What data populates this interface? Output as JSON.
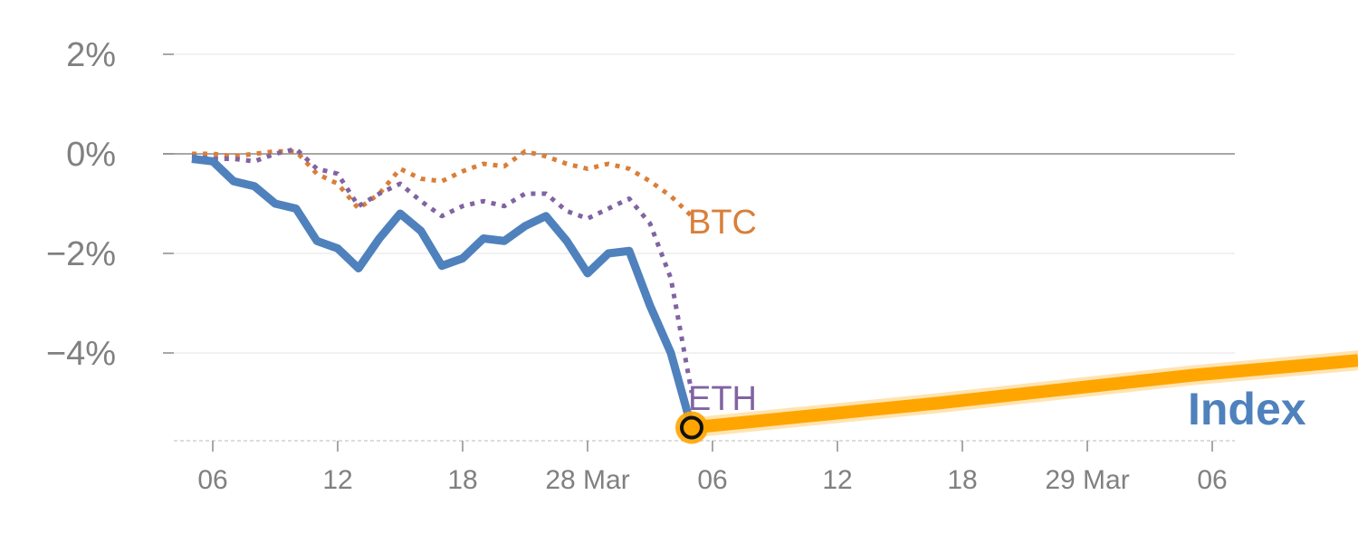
{
  "chart_data": {
    "type": "line",
    "title": "",
    "xlabel": "",
    "ylabel": "",
    "ylim": [
      -5.8,
      2.4
    ],
    "grid": true,
    "y_ticks": [
      {
        "value": 2,
        "label": "2%"
      },
      {
        "value": 0,
        "label": "0%"
      },
      {
        "value": -2,
        "label": "−2%"
      },
      {
        "value": -4,
        "label": "−4%"
      }
    ],
    "x_ticks": [
      "06",
      "12",
      "18",
      "28 Mar",
      "06",
      "12",
      "18",
      "29 Mar",
      "06"
    ],
    "series": [
      {
        "name": "Index",
        "style": "solid",
        "color": "#4f81bd",
        "values": [
          -0.1,
          -0.15,
          -0.55,
          -0.65,
          -1.0,
          -1.1,
          -1.75,
          -1.9,
          -2.3,
          -1.7,
          -1.2,
          -1.55,
          -2.25,
          -2.1,
          -1.7,
          -1.75,
          -1.45,
          -1.25,
          -1.75,
          -2.4,
          -2.0,
          -1.95,
          -3.05,
          -4.0,
          -5.5
        ]
      },
      {
        "name": "ETH",
        "style": "dotted",
        "color": "#8064a2",
        "values": [
          -0.05,
          -0.1,
          -0.1,
          -0.15,
          0.0,
          0.1,
          -0.3,
          -0.4,
          -1.05,
          -0.8,
          -0.6,
          -0.95,
          -1.25,
          -1.05,
          -0.95,
          -1.05,
          -0.8,
          -0.8,
          -1.15,
          -1.3,
          -1.1,
          -0.9,
          -1.4,
          -2.5,
          -4.8
        ]
      },
      {
        "name": "BTC",
        "style": "dotted",
        "color": "#d97f39",
        "values": [
          0.0,
          0.0,
          -0.05,
          0.0,
          0.05,
          0.05,
          -0.4,
          -0.6,
          -1.1,
          -0.8,
          -0.3,
          -0.5,
          -0.55,
          -0.35,
          -0.2,
          -0.25,
          0.05,
          -0.05,
          -0.2,
          -0.3,
          -0.2,
          -0.3,
          -0.55,
          -0.85,
          -1.25
        ]
      }
    ],
    "forecast": {
      "color": "#ffa500",
      "points": [
        [
          24,
          -5.5
        ],
        [
          36,
          -5.0
        ],
        [
          48,
          -4.45
        ],
        [
          56,
          -4.15
        ]
      ]
    },
    "marker_index": 24,
    "x_count": 57
  }
}
